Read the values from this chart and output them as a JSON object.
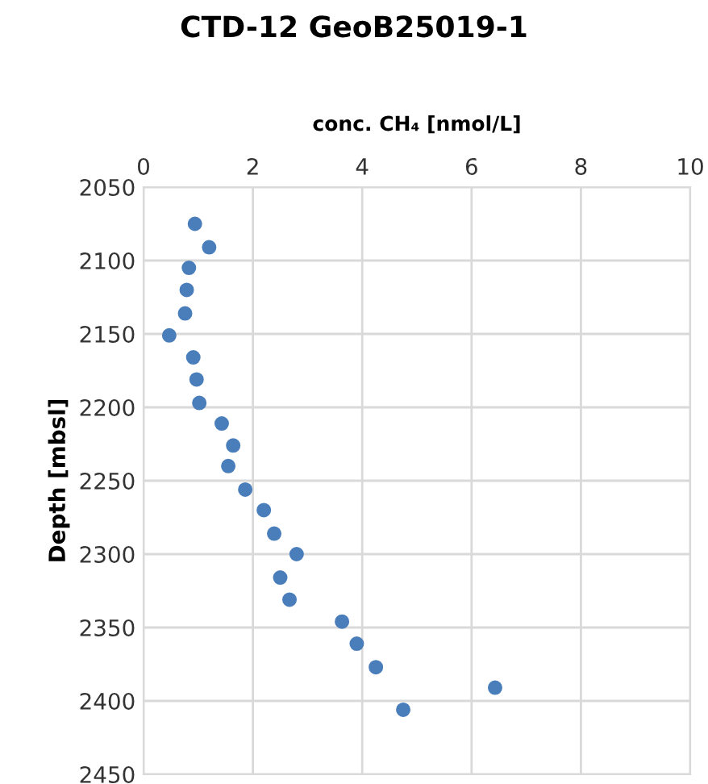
{
  "chart_data": {
    "type": "scatter",
    "title": "CTD-12 GeoB25019-1",
    "xlabel": "conc. CH₄ [nmol/L]",
    "ylabel": "Depth [mbsl]",
    "x": [
      0.94,
      1.2,
      0.83,
      0.79,
      0.76,
      0.47,
      0.91,
      0.97,
      1.02,
      1.43,
      1.64,
      1.55,
      1.86,
      2.2,
      2.39,
      2.8,
      2.5,
      2.67,
      3.63,
      3.9,
      4.25,
      6.43,
      4.75
    ],
    "values": [
      2075,
      2091,
      2105,
      2120,
      2136,
      2151,
      2166,
      2181,
      2197,
      2211,
      2226,
      2240,
      2256,
      2270,
      2286,
      2300,
      2316,
      2331,
      2346,
      2361,
      2377,
      2391,
      2406
    ],
    "color": "#4a7ebb",
    "marker": "circle",
    "xlim": [
      0,
      10
    ],
    "xticks": [
      0,
      2,
      4,
      6,
      8,
      10
    ],
    "ylim": [
      2450,
      2050
    ],
    "yticks": [
      2050,
      2100,
      2150,
      2200,
      2250,
      2300,
      2350,
      2400,
      2450
    ],
    "grid": true
  }
}
